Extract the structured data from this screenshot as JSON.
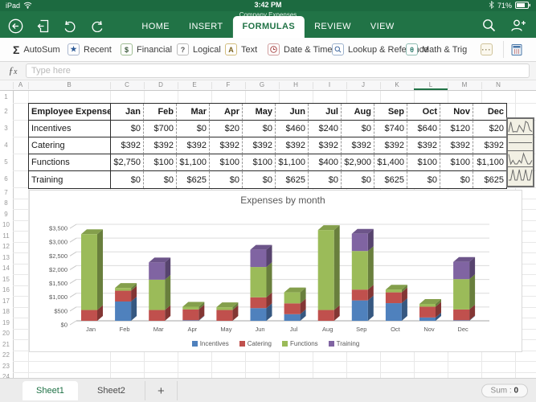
{
  "status_bar": {
    "device": "iPad",
    "time": "3:42 PM",
    "document_title": "Company Expenses",
    "battery_percent": "71%",
    "icons": [
      "wifi-icon",
      "bluetooth-icon",
      "battery-icon"
    ]
  },
  "nav": {
    "tabs": [
      {
        "label": "HOME",
        "active": false
      },
      {
        "label": "INSERT",
        "active": false
      },
      {
        "label": "FORMULAS",
        "active": true
      },
      {
        "label": "REVIEW",
        "active": false
      },
      {
        "label": "VIEW",
        "active": false
      }
    ],
    "toolbar_icons": [
      "back-icon",
      "open-file-icon",
      "undo-icon",
      "redo-icon",
      "search-icon",
      "add-people-icon"
    ]
  },
  "ribbon": {
    "items": [
      {
        "label": "AutoSum",
        "icon": "sigma-icon"
      },
      {
        "label": "Recent",
        "icon": "star-icon"
      },
      {
        "label": "Financial",
        "icon": "money-icon"
      },
      {
        "label": "Logical",
        "icon": "question-icon"
      },
      {
        "label": "Text",
        "icon": "letter-a-icon"
      },
      {
        "label": "Date & Time",
        "icon": "clock-icon"
      },
      {
        "label": "Lookup & Reference",
        "icon": "magnifier-icon"
      },
      {
        "label": "Math & Trig",
        "icon": "theta-icon"
      },
      {
        "label": "",
        "icon": "ellipsis-icon"
      }
    ],
    "keyboard_icon": "keyboard-icon"
  },
  "formula_bar": {
    "fx_label": "fx",
    "placeholder": "Type here"
  },
  "grid": {
    "columns": [
      "A",
      "B",
      "C",
      "D",
      "E",
      "F",
      "G",
      "H",
      "I",
      "J",
      "K",
      "L",
      "M",
      "N"
    ],
    "highlighted_column": "L",
    "row_count": 25
  },
  "table": {
    "header": [
      "Employee Expenses",
      "Jan",
      "Feb",
      "Mar",
      "Apr",
      "May",
      "Jun",
      "Jul",
      "Aug",
      "Sep",
      "Oct",
      "Nov",
      "Dec"
    ],
    "rows": [
      {
        "label": "Incentives",
        "values": [
          0,
          700,
          0,
          20,
          0,
          460,
          240,
          0,
          740,
          640,
          120,
          20
        ]
      },
      {
        "label": "Catering",
        "values": [
          392,
          392,
          392,
          392,
          392,
          392,
          392,
          392,
          392,
          392,
          392,
          392
        ]
      },
      {
        "label": "Functions",
        "values": [
          2750,
          100,
          1100,
          100,
          100,
          1100,
          400,
          2900,
          1400,
          100,
          100,
          1100
        ]
      },
      {
        "label": "Training",
        "values": [
          0,
          0,
          625,
          0,
          0,
          625,
          0,
          0,
          625,
          0,
          0,
          625
        ]
      }
    ]
  },
  "sparklines": {
    "type": "line",
    "rows": [
      "Incentives",
      "Catering",
      "Functions",
      "Training"
    ]
  },
  "chart_data": {
    "type": "bar",
    "subtype": "stacked-3d-column",
    "title": "Expenses by month",
    "categories": [
      "Jan",
      "Feb",
      "Mar",
      "Apr",
      "May",
      "Jun",
      "Jul",
      "Aug",
      "Sep",
      "Oct",
      "Nov",
      "Dec"
    ],
    "series": [
      {
        "name": "Incentives",
        "color": "#4F81BD",
        "values": [
          0,
          700,
          0,
          20,
          0,
          460,
          240,
          0,
          740,
          640,
          120,
          20
        ]
      },
      {
        "name": "Catering",
        "color": "#C0504D",
        "values": [
          392,
          392,
          392,
          392,
          392,
          392,
          392,
          392,
          392,
          392,
          392,
          392
        ]
      },
      {
        "name": "Functions",
        "color": "#9BBB59",
        "values": [
          2750,
          100,
          1100,
          100,
          100,
          1100,
          400,
          2900,
          1400,
          100,
          100,
          1100
        ]
      },
      {
        "name": "Training",
        "color": "#8064A2",
        "values": [
          0,
          0,
          625,
          0,
          0,
          625,
          0,
          0,
          625,
          0,
          0,
          625
        ]
      }
    ],
    "xlabel": "",
    "ylabel": "",
    "ylim": [
      0,
      3500
    ],
    "ytick_step": 500,
    "ytick_prefix": "$",
    "grid": true,
    "legend_position": "bottom"
  },
  "sheet_bar": {
    "sheets": [
      {
        "name": "Sheet1",
        "active": true
      },
      {
        "name": "Sheet2",
        "active": false
      }
    ],
    "add_label": "+",
    "sum_label": "Sum :",
    "sum_value": "0"
  },
  "colors": {
    "theme_green": "#217346",
    "status_bar_green": "#1c6a40"
  }
}
